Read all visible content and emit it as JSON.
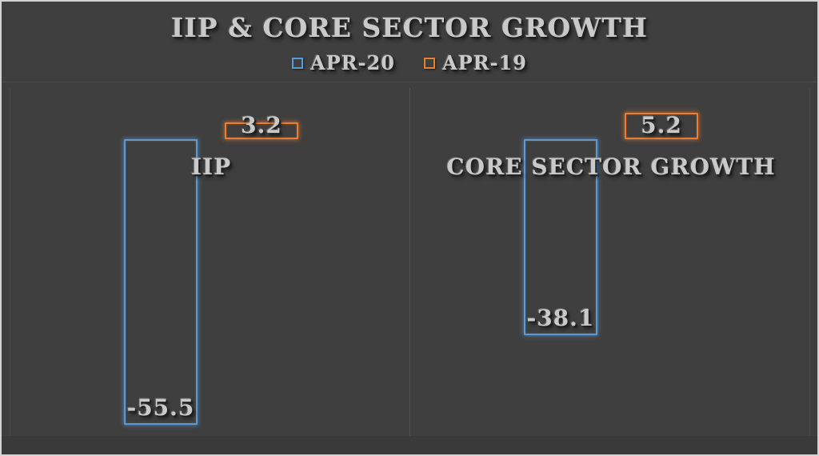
{
  "chart_data": {
    "type": "bar",
    "title": "IIP & CORE SECTOR GROWTH",
    "categories": [
      "IIP",
      "CORE SECTOR GROWTH"
    ],
    "series": [
      {
        "name": "APR-20",
        "color": "#5B9BD5",
        "values": [
          -55.5,
          -38.1
        ]
      },
      {
        "name": "APR-19",
        "color": "#ED7D31",
        "values": [
          3.2,
          5.2
        ]
      }
    ],
    "data_labels": "shown at inside end of each bar",
    "legend_position": "top center",
    "value_axis_visible": false,
    "ylim_estimate": [
      -57.7,
      11.2
    ],
    "grid": "vertical category divider lines only",
    "background": "#3F3F3F"
  },
  "colors": {
    "background": "#3F3F3F",
    "frame_border": "#D4D4D4",
    "text": "#C9C9C9",
    "gridline": "#525252",
    "series_apr20": "#5B9BD5",
    "series_apr19": "#ED7D31"
  }
}
